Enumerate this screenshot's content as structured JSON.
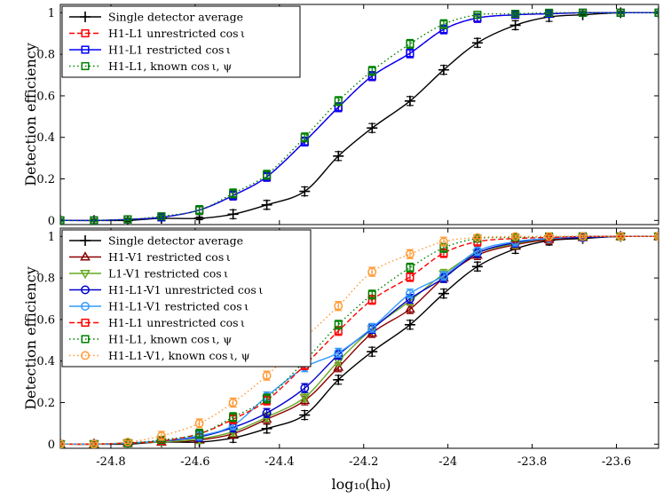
{
  "figure": {
    "xlabel": "log₁₀(h₀)",
    "ylabel": "Detection efficiency"
  },
  "chart_data": [
    {
      "type": "line",
      "title": "",
      "xlabel": "",
      "ylabel": "Detection efficiency",
      "xlim": [
        -24.92,
        -23.5
      ],
      "ylim": [
        -0.02,
        1.04
      ],
      "xticks": [
        "-24.8",
        "-24.6",
        "-24.4",
        "-24.2",
        "-24",
        "-23.8",
        "-23.6"
      ],
      "yticks": [
        "0",
        "0.2",
        "0.4",
        "0.6",
        "0.8",
        "1"
      ],
      "legend_position": "top-left",
      "x": [
        -24.92,
        -24.84,
        -24.76,
        -24.68,
        -24.59,
        -24.51,
        -24.43,
        -24.34,
        -24.26,
        -24.18,
        -24.09,
        -24.01,
        -23.93,
        -23.84,
        -23.76,
        -23.68,
        -23.59,
        -23.5
      ],
      "series": [
        {
          "name": "Single detector average",
          "label": "Single detector average",
          "color": "#000000",
          "marker": "plus",
          "dash": "solid",
          "values": [
            0.0,
            0.0,
            0.0,
            0.01,
            0.01,
            0.03,
            0.075,
            0.14,
            0.31,
            0.445,
            0.575,
            0.725,
            0.855,
            0.94,
            0.98,
            0.99,
            1.0,
            1.0
          ]
        },
        {
          "name": "H1-L1 unrestricted cos iota",
          "label": "H1-L1 unrestricted cos ι",
          "color": "#ff0000",
          "marker": "square",
          "dash": "dashed",
          "values": [
            0.0,
            0.0,
            0.005,
            0.015,
            0.05,
            0.12,
            0.21,
            0.38,
            0.545,
            0.695,
            0.805,
            0.92,
            0.975,
            0.99,
            0.995,
            1.0,
            1.0,
            1.0
          ]
        },
        {
          "name": "H1-L1 restricted cos iota",
          "label": "H1-L1 restricted cos ι",
          "color": "#0000ff",
          "marker": "square",
          "dash": "solid",
          "values": [
            0.0,
            0.0,
            0.005,
            0.015,
            0.05,
            0.12,
            0.21,
            0.38,
            0.545,
            0.695,
            0.805,
            0.92,
            0.975,
            0.99,
            0.995,
            1.0,
            1.0,
            1.0
          ]
        },
        {
          "name": "H1-L1 known cos iota psi",
          "label": "H1-L1, known cos ι, ψ",
          "color": "#008000",
          "marker": "square",
          "dash": "dotted",
          "values": [
            0.0,
            0.0,
            0.005,
            0.02,
            0.05,
            0.13,
            0.22,
            0.4,
            0.575,
            0.72,
            0.85,
            0.945,
            0.99,
            0.995,
            1.0,
            1.0,
            1.0,
            1.0
          ]
        }
      ]
    },
    {
      "type": "line",
      "title": "",
      "xlabel": "log₁₀(h₀)",
      "ylabel": "Detection efficiency",
      "xlim": [
        -24.92,
        -23.5
      ],
      "ylim": [
        -0.02,
        1.04
      ],
      "xticks": [
        "-24.8",
        "-24.6",
        "-24.4",
        "-24.2",
        "-24",
        "-23.8",
        "-23.6"
      ],
      "yticks": [
        "0",
        "0.2",
        "0.4",
        "0.6",
        "0.8",
        "1"
      ],
      "legend_position": "top-left",
      "x": [
        -24.92,
        -24.84,
        -24.76,
        -24.68,
        -24.59,
        -24.51,
        -24.43,
        -24.34,
        -24.26,
        -24.18,
        -24.09,
        -24.01,
        -23.93,
        -23.84,
        -23.76,
        -23.68,
        -23.59,
        -23.5
      ],
      "series": [
        {
          "name": "Single detector average",
          "label": "Single detector average",
          "color": "#000000",
          "marker": "plus",
          "dash": "solid",
          "values": [
            0.0,
            0.0,
            0.0,
            0.01,
            0.01,
            0.03,
            0.075,
            0.14,
            0.31,
            0.445,
            0.575,
            0.725,
            0.855,
            0.94,
            0.98,
            0.99,
            1.0,
            1.0
          ]
        },
        {
          "name": "H1-V1 restricted cos iota",
          "label": "H1-V1 restricted cos ι",
          "color": "#8b0000",
          "marker": "triangle-up",
          "dash": "solid",
          "values": [
            0.0,
            0.0,
            0.005,
            0.01,
            0.02,
            0.05,
            0.12,
            0.21,
            0.37,
            0.535,
            0.65,
            0.8,
            0.91,
            0.96,
            0.985,
            0.995,
            1.0,
            1.0
          ]
        },
        {
          "name": "L1-V1 restricted cos iota",
          "label": "L1-V1 restricted cos ι",
          "color": "#66aa22",
          "marker": "triangle-down",
          "dash": "solid",
          "values": [
            0.0,
            0.0,
            0.005,
            0.01,
            0.025,
            0.06,
            0.13,
            0.225,
            0.4,
            0.555,
            0.69,
            0.82,
            0.92,
            0.965,
            0.99,
            0.995,
            1.0,
            1.0
          ]
        },
        {
          "name": "H1-L1-V1 unrestricted cos iota",
          "label": "H1-L1-V1 unrestricted cos ι",
          "color": "#0000cc",
          "marker": "circle",
          "dash": "solid",
          "values": [
            0.0,
            0.0,
            0.005,
            0.015,
            0.035,
            0.08,
            0.15,
            0.27,
            0.43,
            0.555,
            0.7,
            0.8,
            0.92,
            0.97,
            0.99,
            0.995,
            1.0,
            1.0
          ]
        },
        {
          "name": "H1-L1-V1 restricted cos iota",
          "label": "H1-L1-V1 restricted cos ι",
          "color": "#3399ff",
          "marker": "circle",
          "dash": "solid",
          "values": [
            0.0,
            0.0,
            0.005,
            0.015,
            0.04,
            0.09,
            0.23,
            0.37,
            0.44,
            0.56,
            0.725,
            0.81,
            0.93,
            0.975,
            0.99,
            1.0,
            1.0,
            1.0
          ]
        },
        {
          "name": "H1-L1 unrestricted cos iota",
          "label": "H1-L1 unrestricted cos ι",
          "color": "#ff0000",
          "marker": "square",
          "dash": "dashed",
          "values": [
            0.0,
            0.0,
            0.005,
            0.015,
            0.05,
            0.12,
            0.21,
            0.38,
            0.545,
            0.695,
            0.805,
            0.92,
            0.975,
            0.99,
            0.995,
            1.0,
            1.0,
            1.0
          ]
        },
        {
          "name": "H1-L1 known cos iota psi",
          "label": "H1-L1, known cos ι, ψ",
          "color": "#008000",
          "marker": "square",
          "dash": "dotted",
          "values": [
            0.0,
            0.0,
            0.005,
            0.02,
            0.05,
            0.13,
            0.22,
            0.4,
            0.575,
            0.72,
            0.85,
            0.945,
            0.99,
            0.995,
            1.0,
            1.0,
            1.0,
            1.0
          ]
        },
        {
          "name": "H1-L1-V1 known cos iota psi",
          "label": "H1-L1-V1, known cos ι, ψ",
          "color": "#ff9933",
          "marker": "circle",
          "dash": "dotted",
          "values": [
            0.0,
            0.0,
            0.01,
            0.04,
            0.1,
            0.2,
            0.33,
            0.51,
            0.665,
            0.83,
            0.915,
            0.975,
            0.995,
            1.0,
            1.0,
            1.0,
            1.0,
            1.0
          ]
        }
      ]
    }
  ]
}
